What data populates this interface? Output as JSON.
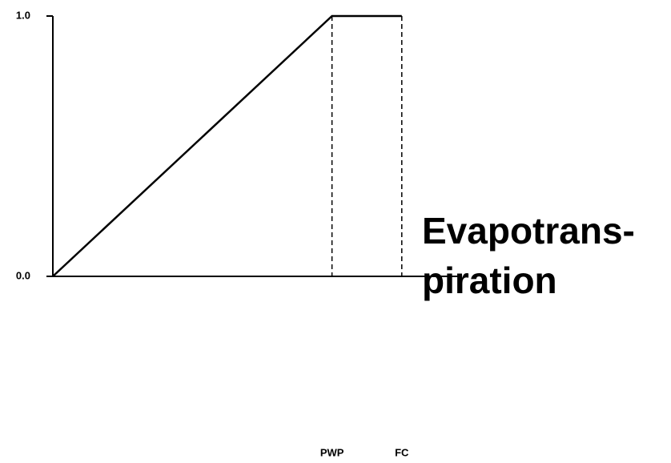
{
  "chart_data": {
    "type": "line",
    "x": [
      0,
      1,
      1.25
    ],
    "series": [
      {
        "values": [
          0,
          1,
          1
        ],
        "color": "#000000"
      }
    ],
    "xlim": [
      0,
      1.46
    ],
    "xticks": [
      {
        "value": 1,
        "label": "PWP"
      },
      {
        "value": 1.25,
        "label": "FC"
      }
    ],
    "ylim": [
      0,
      1
    ],
    "yticks": [
      {
        "value": 0,
        "label": "0.0"
      },
      {
        "value": 1,
        "label": "1.0"
      }
    ],
    "annotation": [
      "Evapotrans-",
      "piration"
    ]
  }
}
